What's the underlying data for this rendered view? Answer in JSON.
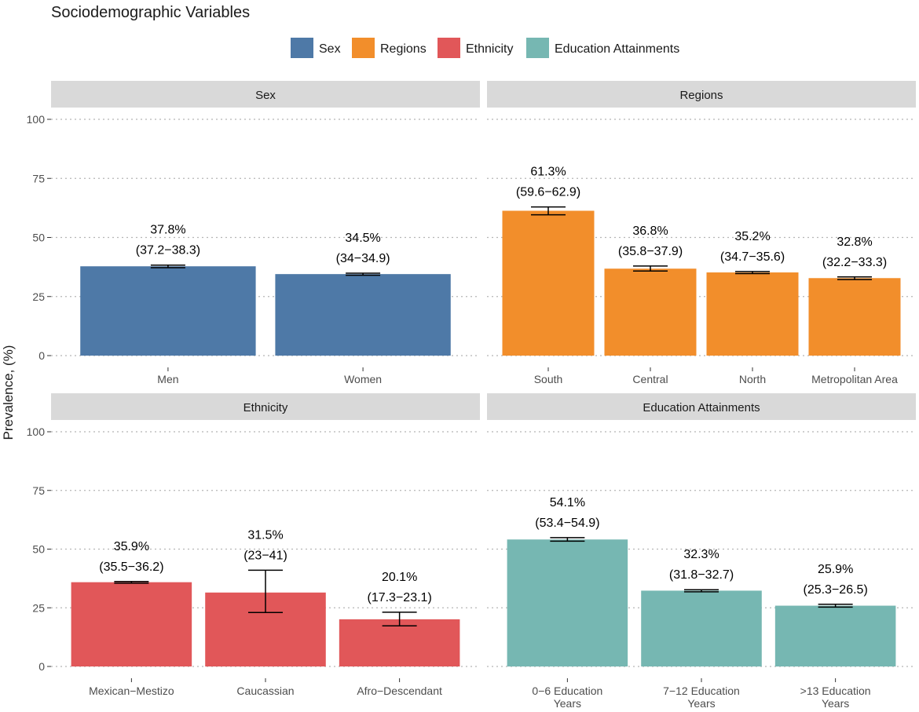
{
  "chart_data": {
    "type": "bar",
    "title": "Sociodemographic Variables",
    "ylabel": "Prevalence, (%)",
    "xlabel": "",
    "ylim": [
      0,
      100
    ],
    "yticks": [
      0,
      25,
      50,
      75,
      100
    ],
    "grid": true,
    "legend": {
      "placement": "top",
      "entries": [
        {
          "label": "Sex",
          "color": "#4e79a7"
        },
        {
          "label": "Regions",
          "color": "#f28e2b"
        },
        {
          "label": "Ethnicity",
          "color": "#e15759"
        },
        {
          "label": "Education Attainments",
          "color": "#76b7b2"
        }
      ]
    },
    "panels": [
      {
        "title": "Sex",
        "color": "#4e79a7",
        "bars": [
          {
            "category": "Men",
            "value": 37.8,
            "low": 37.2,
            "high": 38.3,
            "pct_label": "37.8%",
            "ci_label": "(37.2−38.3)"
          },
          {
            "category": "Women",
            "value": 34.5,
            "low": 34,
            "high": 34.9,
            "pct_label": "34.5%",
            "ci_label": "(34−34.9)"
          }
        ]
      },
      {
        "title": "Regions",
        "color": "#f28e2b",
        "bars": [
          {
            "category": "South",
            "value": 61.3,
            "low": 59.6,
            "high": 62.9,
            "pct_label": "61.3%",
            "ci_label": "(59.6−62.9)"
          },
          {
            "category": "Central",
            "value": 36.8,
            "low": 35.8,
            "high": 37.9,
            "pct_label": "36.8%",
            "ci_label": "(35.8−37.9)"
          },
          {
            "category": "North",
            "value": 35.2,
            "low": 34.7,
            "high": 35.6,
            "pct_label": "35.2%",
            "ci_label": "(34.7−35.6)"
          },
          {
            "category": "Metropolitan Area",
            "value": 32.8,
            "low": 32.2,
            "high": 33.3,
            "pct_label": "32.8%",
            "ci_label": "(32.2−33.3)"
          }
        ]
      },
      {
        "title": "Ethnicity",
        "color": "#e15759",
        "bars": [
          {
            "category": "Mexican−Mestizo",
            "value": 35.9,
            "low": 35.5,
            "high": 36.2,
            "pct_label": "35.9%",
            "ci_label": "(35.5−36.2)"
          },
          {
            "category": "Caucassian",
            "value": 31.5,
            "low": 23,
            "high": 41,
            "pct_label": "31.5%",
            "ci_label": "(23−41)"
          },
          {
            "category": "Afro−Descendant",
            "value": 20.1,
            "low": 17.3,
            "high": 23.1,
            "pct_label": "20.1%",
            "ci_label": "(17.3−23.1)"
          }
        ]
      },
      {
        "title": "Education Attainments",
        "color": "#76b7b2",
        "bars": [
          {
            "category": "0−6 Education\nYears",
            "value": 54.1,
            "low": 53.4,
            "high": 54.9,
            "pct_label": "54.1%",
            "ci_label": "(53.4−54.9)"
          },
          {
            "category": "7−12 Education\nYears",
            "value": 32.3,
            "low": 31.8,
            "high": 32.7,
            "pct_label": "32.3%",
            "ci_label": "(31.8−32.7)"
          },
          {
            "category": ">13 Education\nYears",
            "value": 25.9,
            "low": 25.3,
            "high": 26.5,
            "pct_label": "25.9%",
            "ci_label": "(25.3−26.5)"
          }
        ]
      }
    ]
  }
}
